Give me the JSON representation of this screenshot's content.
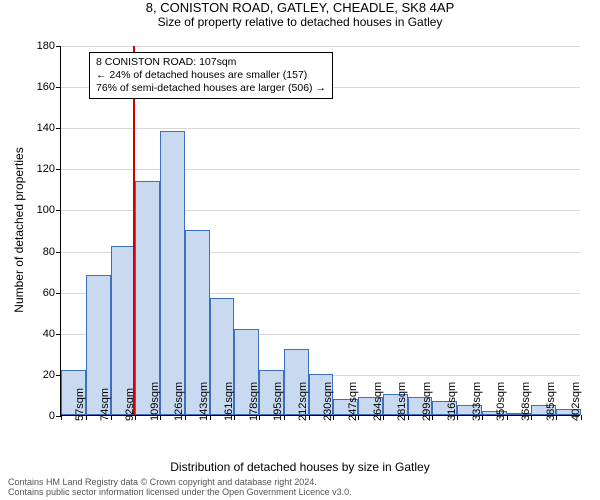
{
  "title": "8, CONISTON ROAD, GATLEY, CHEADLE, SK8 4AP",
  "subtitle": "Size of property relative to detached houses in Gatley",
  "ylabel": "Number of detached properties",
  "xlabel": "Distribution of detached houses by size in Gatley",
  "chart": {
    "type": "histogram",
    "ymax": 180,
    "ytick_step": 20,
    "categories": [
      "57sqm",
      "74sqm",
      "92sqm",
      "109sqm",
      "126sqm",
      "143sqm",
      "161sqm",
      "178sqm",
      "195sqm",
      "212sqm",
      "230sqm",
      "247sqm",
      "264sqm",
      "281sqm",
      "299sqm",
      "316sqm",
      "333sqm",
      "350sqm",
      "368sqm",
      "385sqm",
      "402sqm"
    ],
    "values": [
      22,
      68,
      82,
      114,
      138,
      90,
      57,
      42,
      22,
      32,
      20,
      8,
      9,
      10,
      9,
      7,
      5,
      2,
      0,
      5,
      3
    ],
    "bar_fill": "#c9daf0",
    "bar_border": "#3c6fbf",
    "grid_color": "#d9d9d9",
    "background_color": "#ffffff",
    "reference_line": {
      "value_index": 2.9,
      "color": "#d40000"
    }
  },
  "annotation": {
    "lines": [
      "8 CONISTON ROAD: 107sqm",
      "← 24% of detached houses are smaller (157)",
      "76% of semi-detached houses are larger (506) →"
    ]
  },
  "footer": {
    "line1": "Contains HM Land Registry data © Crown copyright and database right 2024.",
    "line2": "Contains public sector information licensed under the Open Government Licence v3.0."
  },
  "fonts": {
    "title_size": 13,
    "subtitle_size": 12,
    "axis_label_size": 12,
    "tick_size": 11
  }
}
